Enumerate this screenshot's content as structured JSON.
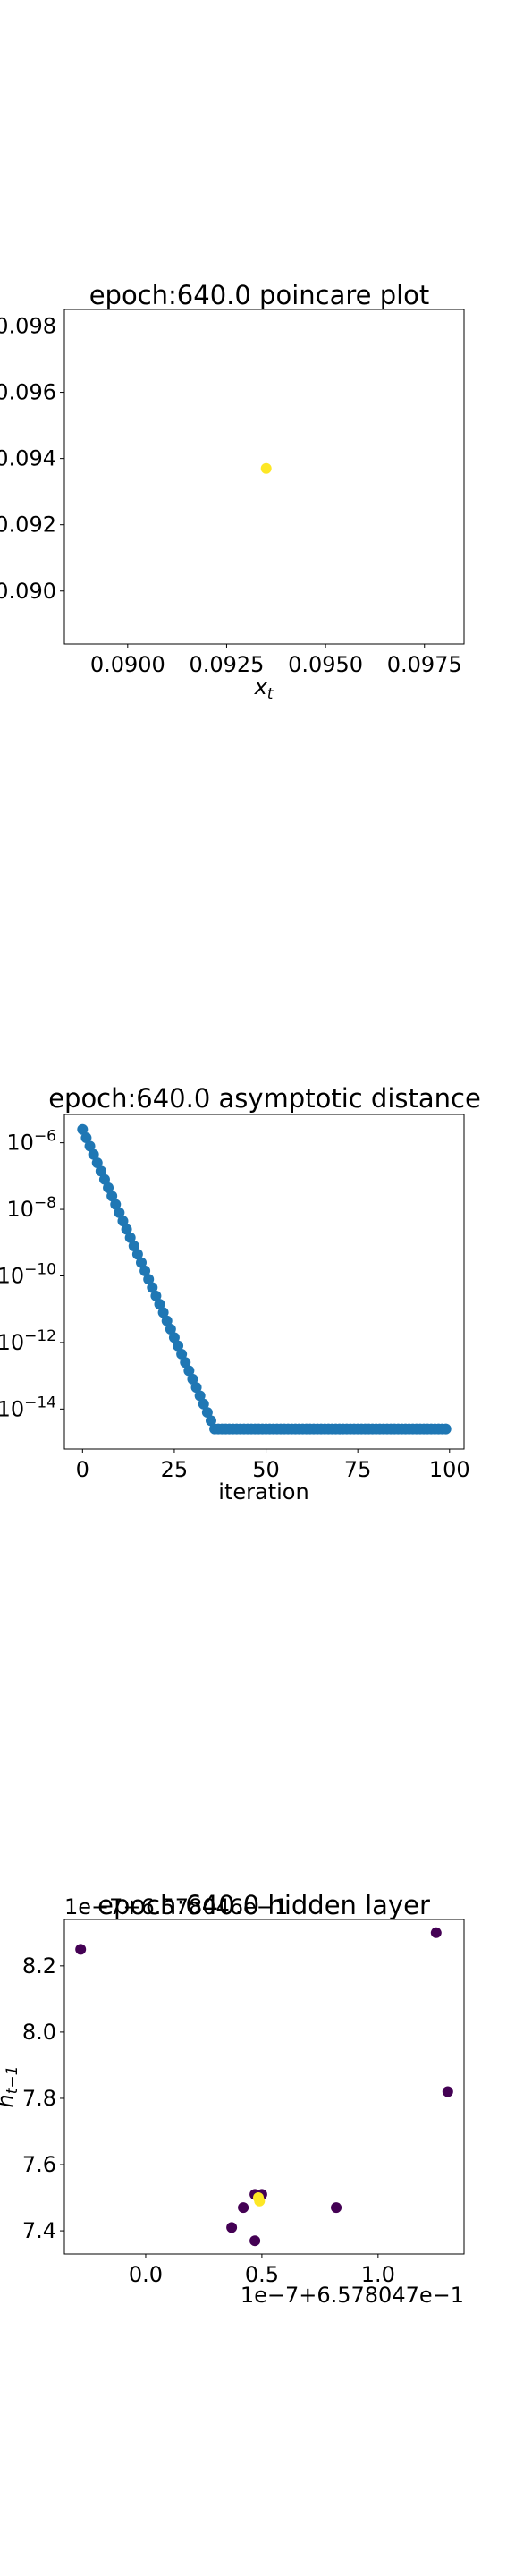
{
  "chart_data": [
    {
      "type": "scatter",
      "title": "epoch:640.0 poincare plot",
      "xlabel": "x_t",
      "ylabel": "",
      "xlim": [
        0.0884,
        0.0985
      ],
      "ylim": [
        0.0884,
        0.0985
      ],
      "xticks": [
        "0.0900",
        "0.0925",
        "0.0950",
        "0.0975"
      ],
      "yticks": [
        "0.098",
        "0.096",
        "0.094",
        "0.092",
        "0.090"
      ],
      "xtick_values": [
        0.09,
        0.0925,
        0.095,
        0.0975
      ],
      "ytick_values": [
        0.098,
        0.096,
        0.094,
        0.092,
        0.09
      ],
      "grid": false,
      "point_color": "#fde725",
      "points": [
        [
          0.0935,
          0.0937
        ]
      ]
    },
    {
      "type": "scatter",
      "title": "epoch:640.0 asymptotic distance",
      "xlabel": "iteration",
      "ylabel": "",
      "yscale": "log",
      "xlim": [
        -4.95,
        103.95
      ],
      "ylim_exp": [
        -15.2,
        -5.15
      ],
      "xticks": [
        "0",
        "25",
        "50",
        "75",
        "100"
      ],
      "xtick_values": [
        0,
        25,
        50,
        75,
        100
      ],
      "yticks": [
        "10^-6",
        "10^-8",
        "10^-10",
        "10^-12",
        "10^-14"
      ],
      "ytick_exponents": [
        -6,
        -8,
        -10,
        -12,
        -14
      ],
      "grid": false,
      "point_color": "#1f77b4",
      "decay": {
        "start_exponent": -5.6,
        "slope_per_iteration": -0.25,
        "floor_exponent": -14.6,
        "floor_from_iteration": 37
      },
      "iterations": [
        0,
        99
      ]
    },
    {
      "type": "scatter",
      "title": "epoch:640.0 hidden layer",
      "xlabel": "",
      "ylabel": "h_{t-1}",
      "x_offset_text": "1e−7+6.578047e−1",
      "y_offset_text": "1e−7+6.578046e−1",
      "xlim": [
        -0.35,
        1.37
      ],
      "ylim": [
        7.33,
        8.34
      ],
      "xticks": [
        "0.0",
        "0.5",
        "1.0"
      ],
      "xtick_values": [
        0.0,
        0.5,
        1.0
      ],
      "yticks": [
        "8.2",
        "8.0",
        "7.8",
        "7.6",
        "7.4"
      ],
      "ytick_values": [
        8.2,
        8.0,
        7.8,
        7.6,
        7.4
      ],
      "grid": false,
      "colors": {
        "dark": "#440154",
        "bright": "#fde725"
      },
      "points": [
        {
          "x": -0.28,
          "y": 8.25,
          "c": "dark"
        },
        {
          "x": 1.25,
          "y": 8.3,
          "c": "dark"
        },
        {
          "x": 1.3,
          "y": 7.82,
          "c": "dark"
        },
        {
          "x": 0.82,
          "y": 7.47,
          "c": "dark"
        },
        {
          "x": 0.42,
          "y": 7.47,
          "c": "dark"
        },
        {
          "x": 0.37,
          "y": 7.41,
          "c": "dark"
        },
        {
          "x": 0.47,
          "y": 7.37,
          "c": "dark"
        },
        {
          "x": 0.47,
          "y": 7.51,
          "c": "dark"
        },
        {
          "x": 0.5,
          "y": 7.51,
          "c": "dark"
        },
        {
          "x": 0.485,
          "y": 7.5,
          "c": "bright"
        },
        {
          "x": 0.49,
          "y": 7.49,
          "c": "bright"
        }
      ]
    }
  ]
}
